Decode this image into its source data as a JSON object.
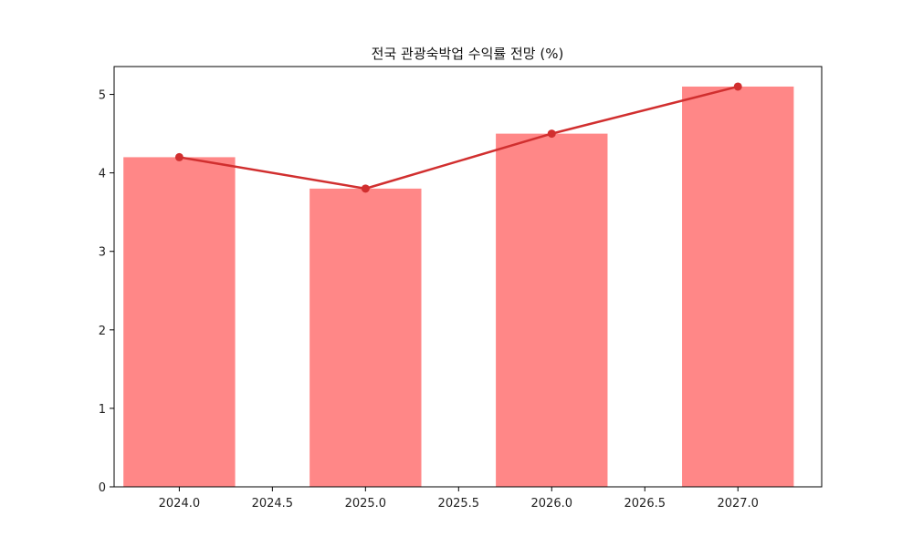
{
  "chart_data": {
    "type": "bar",
    "title": "전국 관광숙박업 수익률 전망 (%)",
    "xlabel": "",
    "ylabel": "",
    "x": [
      2024.0,
      2025.0,
      2026.0,
      2027.0
    ],
    "values": [
      4.2,
      3.8,
      4.5,
      5.1
    ],
    "bar_width": 0.6,
    "line_overlay": true,
    "xlim": [
      2023.65,
      2027.45
    ],
    "ylim": [
      0,
      5.355
    ],
    "x_ticks": [
      2024.0,
      2024.5,
      2025.0,
      2025.5,
      2026.0,
      2026.5,
      2027.0
    ],
    "x_tick_labels": [
      "2024.0",
      "2024.5",
      "2025.0",
      "2025.5",
      "2026.0",
      "2026.5",
      "2027.0"
    ],
    "y_ticks": [
      0,
      1,
      2,
      3,
      4,
      5
    ],
    "y_tick_labels": [
      "0",
      "1",
      "2",
      "3",
      "4",
      "5"
    ],
    "grid": false,
    "legend": "none",
    "colors": {
      "bar": "#ff8787",
      "line": "#d12f2f",
      "axis": "#000000",
      "text": "#222222"
    }
  }
}
